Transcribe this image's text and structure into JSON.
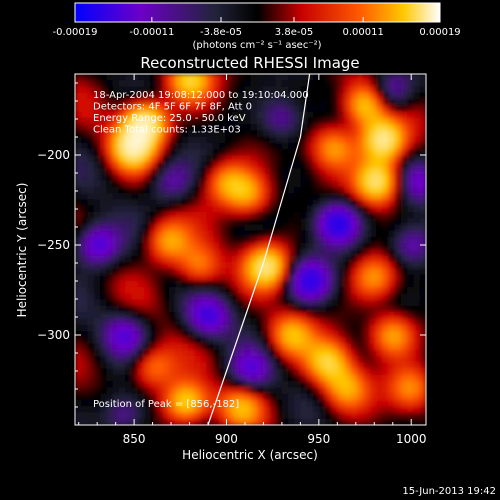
{
  "colorbar": {
    "tick_labels": [
      "-0.00019",
      "-0.00011",
      "-3.8e-05",
      "3.8e-05",
      "0.00011",
      "0.00019"
    ],
    "units_label": "(photons cm⁻² s⁻¹ asec⁻²)",
    "range": [
      -0.00019,
      0.00019
    ],
    "colors": [
      "#0000ff",
      "#6c00c8",
      "#23233c",
      "#000000",
      "#c80000",
      "#ff5a00",
      "#ffc800",
      "#ffffff"
    ]
  },
  "chart_data": {
    "type": "heatmap",
    "title": "Reconstructed RHESSI Image",
    "xlabel": "Heliocentric X (arcsec)",
    "ylabel": "Heliocentric Y (arcsec)",
    "xlim": [
      818,
      1008
    ],
    "ylim": [
      -350,
      -155
    ],
    "x_ticks": [
      850,
      900,
      950,
      1000
    ],
    "y_ticks": [
      -200,
      -250,
      -300
    ],
    "info_lines": [
      "18-Apr-2004 19:08:12.000 to 19:10:04.000",
      "Detectors: 4F 5F 6F 7F 8F, Att 0",
      "Energy Range: 25.0 - 50.0 keV",
      "Clean    Total counts: 1.33E+03"
    ],
    "peak_label": "Position of Peak = [856,-182]",
    "peak_position": [
      856,
      -182
    ],
    "limb_curve": [
      [
        890,
        -350
      ],
      [
        900,
        -320
      ],
      [
        910,
        -290
      ],
      [
        920,
        -260
      ],
      [
        930,
        -225
      ],
      [
        940,
        -190
      ],
      [
        945,
        -155
      ]
    ],
    "sources": [
      {
        "x": 856,
        "y": -182,
        "amp": 1.0
      },
      {
        "x": 849,
        "y": -196,
        "amp": 0.85
      },
      {
        "x": 880,
        "y": -158,
        "amp": 0.7
      },
      {
        "x": 985,
        "y": -192,
        "amp": 0.95
      },
      {
        "x": 982,
        "y": -215,
        "amp": 0.9
      },
      {
        "x": 975,
        "y": -172,
        "amp": 0.75
      },
      {
        "x": 958,
        "y": -196,
        "amp": 0.55
      },
      {
        "x": 900,
        "y": -215,
        "amp": 0.5
      },
      {
        "x": 912,
        "y": -222,
        "amp": 0.55
      },
      {
        "x": 922,
        "y": -262,
        "amp": 0.85
      },
      {
        "x": 868,
        "y": -248,
        "amp": 0.6
      },
      {
        "x": 885,
        "y": -262,
        "amp": 0.5
      },
      {
        "x": 935,
        "y": -300,
        "amp": 0.6
      },
      {
        "x": 980,
        "y": -268,
        "amp": 0.5
      },
      {
        "x": 990,
        "y": -300,
        "amp": 0.6
      },
      {
        "x": 955,
        "y": -315,
        "amp": 0.7
      },
      {
        "x": 965,
        "y": -330,
        "amp": 0.55
      },
      {
        "x": 878,
        "y": -338,
        "amp": 0.85
      },
      {
        "x": 860,
        "y": -318,
        "amp": 0.5
      },
      {
        "x": 908,
        "y": -340,
        "amp": 0.5
      },
      {
        "x": 1000,
        "y": -330,
        "amp": 0.5
      },
      {
        "x": 830,
        "y": -250,
        "amp": -0.7
      },
      {
        "x": 845,
        "y": -300,
        "amp": -0.5
      },
      {
        "x": 890,
        "y": -290,
        "amp": -0.6
      },
      {
        "x": 960,
        "y": -238,
        "amp": -0.8
      },
      {
        "x": 945,
        "y": -270,
        "amp": -0.7
      },
      {
        "x": 1000,
        "y": -250,
        "amp": -0.5
      },
      {
        "x": 990,
        "y": -165,
        "amp": -0.5
      },
      {
        "x": 870,
        "y": -215,
        "amp": -0.4
      },
      {
        "x": 930,
        "y": -180,
        "amp": -0.4
      },
      {
        "x": 913,
        "y": -320,
        "amp": -0.5
      },
      {
        "x": 845,
        "y": -345,
        "amp": -0.45
      },
      {
        "x": 1005,
        "y": -215,
        "amp": -0.4
      }
    ]
  },
  "footer": {
    "timestamp": "15-Jun-2013 19:42"
  }
}
